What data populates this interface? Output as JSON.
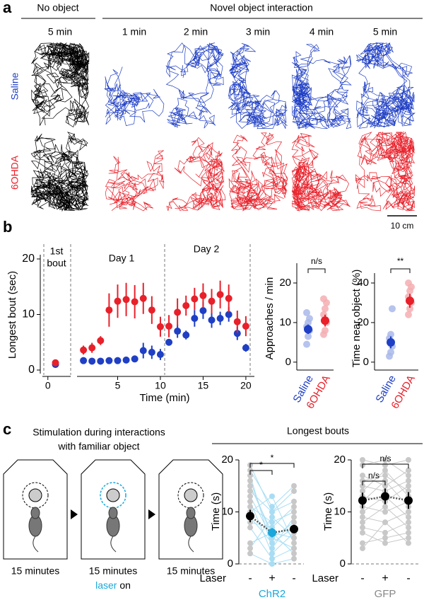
{
  "panel_labels": [
    "a",
    "b",
    "c"
  ],
  "panel_a": {
    "header_left": "No object",
    "header_right": "Novel object interaction",
    "times": [
      "5 min",
      "1 min",
      "2 min",
      "3 min",
      "4 min",
      "5 min"
    ],
    "rows": [
      {
        "name": "Saline",
        "color": "#1f3fc4"
      },
      {
        "name": "6OHDA",
        "color": "#e8202a"
      }
    ],
    "baseline_color": "#000000",
    "scale_bar": "10 cm"
  },
  "panel_c": {
    "caption": [
      "Stimulation during interactions",
      "with familiar object"
    ],
    "steps": [
      "15 minutes",
      "15 minutes",
      "15 minutes"
    ],
    "laser": "laser",
    "on": "on",
    "title": "Longest bouts"
  },
  "chart_data": [
    {
      "type": "scatter",
      "annotation": [
        "1st",
        "bout"
      ],
      "y_label": "Longest bout (sec)",
      "x": [
        1
      ],
      "xlim": [
        -1,
        3
      ],
      "xticks": [
        0
      ],
      "ylim": [
        0,
        20
      ],
      "yticks": [
        0,
        10,
        20
      ],
      "series": [
        {
          "name": "Saline",
          "color": "#1f3fc4",
          "values": [
            1.0
          ],
          "errors": [
            0.2
          ]
        },
        {
          "name": "6OHDA",
          "color": "#e8202a",
          "values": [
            1.3
          ],
          "errors": [
            0.3
          ]
        }
      ]
    },
    {
      "type": "scatter",
      "annotations": [
        "Day 1",
        "Day 2"
      ],
      "x_label": "Time (min)",
      "x": [
        1,
        2,
        3,
        4,
        5,
        6,
        7,
        8,
        9,
        10,
        11,
        12,
        13,
        14,
        15,
        16,
        17,
        18,
        19,
        20
      ],
      "xlim": [
        0,
        21
      ],
      "xticks": [
        5,
        10,
        15,
        20
      ],
      "ylim": [
        0,
        20
      ],
      "series": [
        {
          "name": "Saline",
          "color": "#1f3fc4",
          "values": [
            1.7,
            1.6,
            1.6,
            1.7,
            1.7,
            1.8,
            2.0,
            3.5,
            3.2,
            2.8,
            5.0,
            7.0,
            6.3,
            9.3,
            10.7,
            9.0,
            9.3,
            10.0,
            6.6,
            4.0
          ],
          "errors": [
            0.3,
            0.2,
            0.2,
            0.2,
            0.2,
            0.3,
            0.6,
            1.4,
            1.2,
            1.0,
            0.6,
            1.2,
            0.8,
            1.5,
            1.5,
            1.4,
            1.2,
            1.3,
            1.2,
            0.7
          ]
        },
        {
          "name": "6OHDA",
          "color": "#e8202a",
          "values": [
            3.6,
            4.0,
            5.3,
            10.8,
            12.4,
            12.7,
            12.3,
            12.9,
            10.8,
            7.8,
            7.9,
            10.4,
            11.6,
            12.8,
            13.4,
            12.4,
            13.6,
            12.9,
            8.7,
            7.9
          ],
          "errors": [
            0.8,
            0.9,
            0.8,
            3.0,
            3.0,
            3.0,
            3.0,
            2.8,
            2.5,
            1.8,
            2.0,
            2.5,
            1.8,
            2.0,
            2.2,
            2.2,
            2.5,
            2.5,
            2.0,
            1.8
          ]
        }
      ]
    },
    {
      "type": "strip",
      "y_label": "Approaches / min",
      "annotation": "n/s",
      "ylim": [
        -2,
        25
      ],
      "yticks": [
        0,
        10,
        20
      ],
      "series": [
        {
          "name": "Saline",
          "color": "#1f3fc4",
          "point_color": "#a9b8ea",
          "mean": 8.3,
          "error": 1.2,
          "points": [
            4.5,
            6.5,
            8,
            9,
            10,
            11,
            12.5
          ]
        },
        {
          "name": "6OHDA",
          "color": "#e8202a",
          "point_color": "#f5aeb2",
          "mean": 10.5,
          "error": 1.5,
          "points": [
            7,
            8,
            10,
            12,
            13.5,
            15,
            16
          ]
        }
      ]
    },
    {
      "type": "strip",
      "y_label": "Time near object (%)",
      "annotation": "**",
      "ylim": [
        -4,
        45
      ],
      "yticks": [
        0,
        20,
        40
      ],
      "series": [
        {
          "name": "Saline",
          "color": "#1f3fc4",
          "point_color": "#a9b8ea",
          "mean": 10,
          "error": 3,
          "points": [
            3,
            5,
            8,
            12,
            14,
            27
          ]
        },
        {
          "name": "6OHDA",
          "color": "#e8202a",
          "point_color": "#f5aeb2",
          "mean": 31,
          "error": 3.5,
          "points": [
            24,
            27,
            30,
            33,
            36,
            38,
            40
          ]
        }
      ]
    },
    {
      "type": "paired",
      "group_label": "ChR2",
      "group_color": "#1aa7dc",
      "y_label": "Time (s)",
      "x_label": "Laser",
      "categories": [
        "-",
        "+",
        "-"
      ],
      "ylim": [
        0,
        20
      ],
      "yticks": [
        0,
        10,
        20
      ],
      "means": [
        9.2,
        6.0,
        6.7
      ],
      "errors": [
        1.2,
        0.9,
        0.8
      ],
      "mean_colors": [
        "#000000",
        "#1aa7dc",
        "#000000"
      ],
      "dot_colors": [
        "#c8c8c8",
        "#a8ddf3",
        "#c8c8c8"
      ],
      "subject_color": "#a8ddf3",
      "annotations": [
        "*",
        "*"
      ],
      "subjects": [
        [
          19,
          10,
          14
        ],
        [
          17,
          3,
          9
        ],
        [
          15,
          6,
          5
        ],
        [
          14,
          10,
          12
        ],
        [
          13,
          5,
          8
        ],
        [
          12,
          2,
          6
        ],
        [
          11,
          8,
          10
        ],
        [
          10,
          13,
          4
        ],
        [
          9,
          4,
          7
        ],
        [
          8,
          7,
          11
        ],
        [
          7,
          1,
          3
        ],
        [
          4,
          6,
          2
        ],
        [
          3,
          9,
          5
        ],
        [
          2,
          0,
          1
        ],
        [
          18,
          11,
          15
        ],
        [
          16,
          5,
          3
        ]
      ]
    },
    {
      "type": "paired",
      "group_label": "GFP",
      "group_color": "#888888",
      "y_label": "Time (s)",
      "x_label": "Laser",
      "categories": [
        "-",
        "+",
        "-"
      ],
      "ylim": [
        0,
        20
      ],
      "yticks": [
        0,
        10,
        20
      ],
      "means": [
        12.2,
        13.0,
        12.2
      ],
      "errors": [
        1.5,
        1.5,
        1.6
      ],
      "mean_colors": [
        "#000000",
        "#000000",
        "#000000"
      ],
      "dot_colors": [
        "#c8c8c8",
        "#c8c8c8",
        "#c8c8c8"
      ],
      "subject_color": "#c8c8c8",
      "annotations": [
        "n/s",
        "n/s"
      ],
      "subjects": [
        [
          20,
          19,
          20
        ],
        [
          19,
          20,
          17
        ],
        [
          17,
          15,
          18
        ],
        [
          16,
          17,
          14
        ],
        [
          15,
          14,
          16
        ],
        [
          14,
          18,
          13
        ],
        [
          13,
          12,
          15
        ],
        [
          12,
          16,
          11
        ],
        [
          11,
          10,
          12
        ],
        [
          10,
          13,
          9
        ],
        [
          9,
          8,
          10
        ],
        [
          8,
          11,
          7
        ],
        [
          7,
          6,
          8
        ],
        [
          6,
          4,
          5
        ],
        [
          4,
          5,
          6
        ],
        [
          3,
          8,
          4
        ]
      ]
    }
  ]
}
